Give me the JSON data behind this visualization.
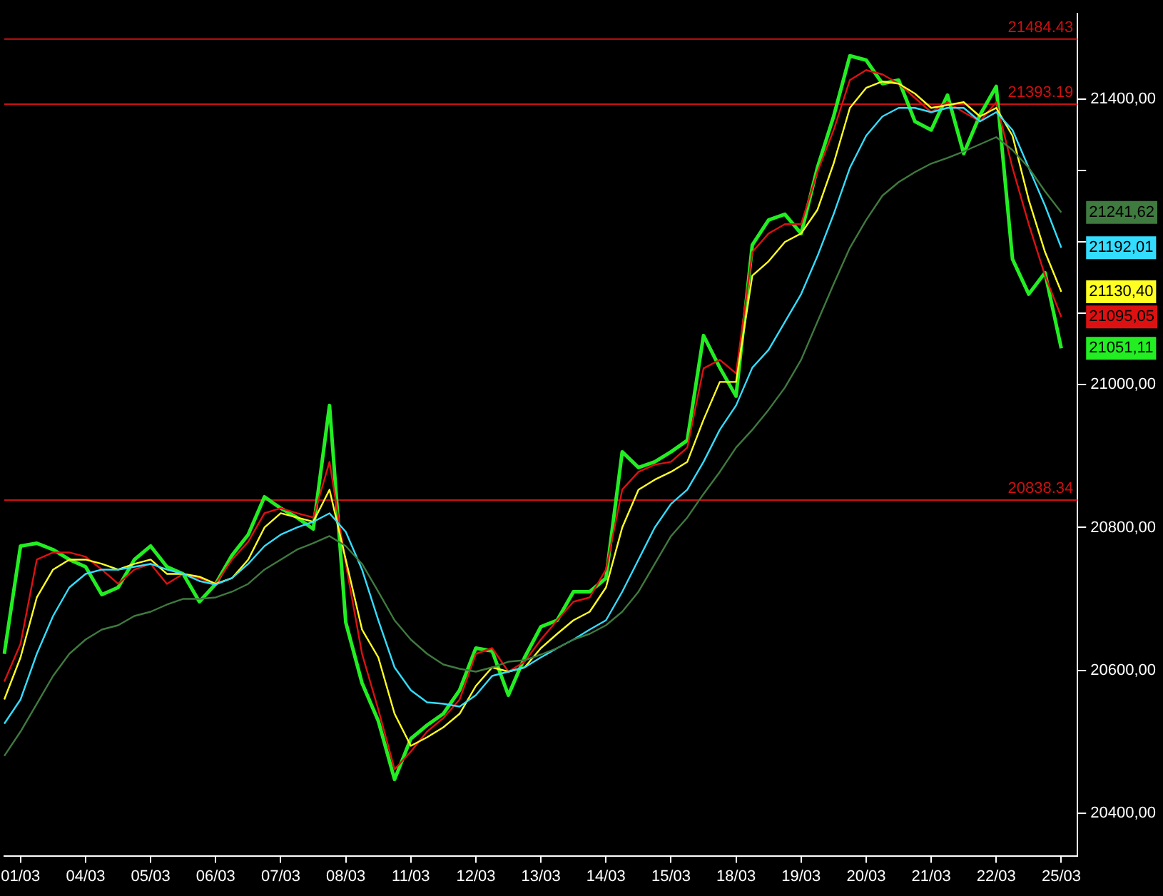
{
  "chart_data": {
    "type": "line",
    "categories": [
      null,
      "01/03",
      null,
      null,
      null,
      "04/03",
      null,
      null,
      null,
      "05/03",
      null,
      null,
      null,
      "06/03",
      null,
      null,
      null,
      "07/03",
      null,
      null,
      null,
      "08/03",
      null,
      null,
      null,
      "11/03",
      null,
      null,
      null,
      "12/03",
      null,
      null,
      null,
      "13/03",
      null,
      null,
      null,
      "14/03",
      null,
      null,
      null,
      "15/03",
      null,
      null,
      null,
      "18/03",
      null,
      null,
      null,
      "19/03",
      null,
      null,
      null,
      "20/03",
      null,
      null,
      null,
      "21/03",
      null,
      null,
      null,
      "22/03",
      null,
      null,
      null,
      "25/03",
      null
    ],
    "series": [
      {
        "color": "#22ee22",
        "values": [
          20623,
          20774,
          20778,
          20769,
          20755,
          20745,
          20706,
          20716,
          20755,
          20774,
          20745,
          20735,
          20696,
          20721,
          20761,
          20790,
          20843,
          20827,
          20814,
          20798,
          20971,
          20667,
          20582,
          20529,
          20447,
          20504,
          20523,
          20539,
          20572,
          20631,
          20627,
          20565,
          20618,
          20661,
          20670,
          20710,
          20710,
          20729,
          20906,
          20884,
          20892,
          20906,
          20922,
          21069,
          21024,
          20984,
          21196,
          21231,
          21239,
          21212,
          21304,
          21376,
          21461,
          21455,
          21422,
          21427,
          21369,
          21357,
          21406,
          21324,
          21378,
          21418,
          21176,
          21127,
          21157,
          21051.11,
          null
        ],
        "value_labels": [
          null,
          null,
          null,
          null,
          null,
          null,
          null,
          null,
          null,
          null,
          null,
          null,
          null,
          null,
          null,
          null,
          null,
          null,
          null,
          null,
          null,
          null,
          null,
          null,
          null,
          null,
          null,
          null,
          null,
          null,
          null,
          null,
          null,
          null,
          null,
          null,
          null,
          null,
          null,
          null,
          null,
          null,
          null,
          null,
          null,
          null,
          null,
          null,
          null,
          null,
          null,
          null,
          null,
          null,
          null,
          null,
          null,
          null,
          null,
          null,
          null,
          null,
          null,
          null,
          null,
          "21051,11",
          null
        ]
      },
      {
        "color": "#dd1111",
        "values": [
          20584,
          20637,
          20755,
          20765,
          20765,
          20759,
          20741,
          20721,
          20741,
          20749,
          20721,
          20735,
          20729,
          20721,
          20755,
          20780,
          20820,
          20827,
          20820,
          20814,
          20892,
          20749,
          20623,
          20545,
          20461,
          20486,
          20514,
          20533,
          20559,
          20623,
          20631,
          20598,
          20612,
          20643,
          20670,
          20696,
          20702,
          20741,
          20853,
          20878,
          20888,
          20892,
          20912,
          21023,
          21035,
          21016,
          21186,
          21212,
          21225,
          21225,
          21298,
          21357,
          21427,
          21441,
          21435,
          21422,
          21402,
          21382,
          21396,
          21382,
          21369,
          21396,
          21304,
          21225,
          21153,
          21095.05,
          null
        ],
        "value_labels": [
          null,
          null,
          null,
          null,
          null,
          null,
          null,
          null,
          null,
          null,
          null,
          null,
          null,
          null,
          null,
          null,
          null,
          null,
          null,
          null,
          null,
          null,
          null,
          null,
          null,
          null,
          null,
          null,
          null,
          null,
          null,
          null,
          null,
          null,
          null,
          null,
          null,
          null,
          null,
          null,
          null,
          null,
          null,
          null,
          null,
          null,
          null,
          null,
          null,
          null,
          null,
          null,
          null,
          null,
          null,
          null,
          null,
          null,
          null,
          null,
          null,
          null,
          null,
          null,
          null,
          "21095,05",
          null
        ]
      },
      {
        "color": "#ffff22",
        "values": [
          20559,
          20618,
          20702,
          20741,
          20755,
          20755,
          20749,
          20741,
          20749,
          20755,
          20735,
          20735,
          20731,
          20721,
          20729,
          20755,
          20800,
          20820,
          20814,
          20808,
          20853,
          20755,
          20657,
          20618,
          20539,
          20494,
          20506,
          20520,
          20539,
          20578,
          20604,
          20598,
          20604,
          20631,
          20651,
          20670,
          20682,
          20716,
          20800,
          20853,
          20867,
          20878,
          20892,
          20951,
          21004,
          21004,
          21153,
          21173,
          21200,
          21212,
          21245,
          21310,
          21388,
          21416,
          21425,
          21422,
          21408,
          21388,
          21392,
          21396,
          21376,
          21388,
          21349,
          21259,
          21186,
          21130.4,
          null
        ],
        "value_labels": [
          null,
          null,
          null,
          null,
          null,
          null,
          null,
          null,
          null,
          null,
          null,
          null,
          null,
          null,
          null,
          null,
          null,
          null,
          null,
          null,
          null,
          null,
          null,
          null,
          null,
          null,
          null,
          null,
          null,
          null,
          null,
          null,
          null,
          null,
          null,
          null,
          null,
          null,
          null,
          null,
          null,
          null,
          null,
          null,
          null,
          null,
          null,
          null,
          null,
          null,
          null,
          null,
          null,
          null,
          null,
          null,
          null,
          null,
          null,
          null,
          null,
          null,
          null,
          null,
          null,
          "21130,40",
          null
        ]
      },
      {
        "color": "#33ddff",
        "values": [
          20525,
          20559,
          20623,
          20676,
          20716,
          20735,
          20741,
          20741,
          20745,
          20749,
          20741,
          20735,
          20725,
          20720,
          20729,
          20749,
          20774,
          20790,
          20800,
          20808,
          20820,
          20794,
          20741,
          20670,
          20604,
          20572,
          20555,
          20553,
          20549,
          20565,
          20592,
          20598,
          20604,
          20618,
          20631,
          20643,
          20657,
          20670,
          20710,
          20755,
          20800,
          20833,
          20853,
          20892,
          20937,
          20971,
          21024,
          21049,
          21088,
          21127,
          21180,
          21239,
          21304,
          21349,
          21376,
          21388,
          21388,
          21382,
          21388,
          21388,
          21369,
          21382,
          21357,
          21304,
          21251,
          21192.01,
          null
        ],
        "value_labels": [
          null,
          null,
          null,
          null,
          null,
          null,
          null,
          null,
          null,
          null,
          null,
          null,
          null,
          null,
          null,
          null,
          null,
          null,
          null,
          null,
          null,
          null,
          null,
          null,
          null,
          null,
          null,
          null,
          null,
          null,
          null,
          null,
          null,
          null,
          null,
          null,
          null,
          null,
          null,
          null,
          null,
          null,
          null,
          null,
          null,
          null,
          null,
          null,
          null,
          null,
          null,
          null,
          null,
          null,
          null,
          null,
          null,
          null,
          null,
          null,
          null,
          null,
          null,
          null,
          null,
          "21192,01",
          null
        ]
      },
      {
        "color": "#3f7a3f",
        "values": [
          20480,
          20514,
          20553,
          20592,
          20623,
          20643,
          20657,
          20663,
          20676,
          20682,
          20692,
          20700,
          20700,
          20702,
          20710,
          20721,
          20741,
          20755,
          20769,
          20778,
          20788,
          20774,
          20749,
          20710,
          20670,
          20643,
          20623,
          20608,
          20602,
          20598,
          20604,
          20612,
          20614,
          20622,
          20631,
          20643,
          20651,
          20663,
          20682,
          20710,
          20749,
          20788,
          20814,
          20847,
          20878,
          20912,
          20937,
          20965,
          20996,
          21035,
          21088,
          21141,
          21192,
          21231,
          21265,
          21284,
          21298,
          21310,
          21318,
          21327,
          21337,
          21347,
          21329,
          21304,
          21271,
          21241.62,
          null
        ],
        "value_labels": [
          null,
          null,
          null,
          null,
          null,
          null,
          null,
          null,
          null,
          null,
          null,
          null,
          null,
          null,
          null,
          null,
          null,
          null,
          null,
          null,
          null,
          null,
          null,
          null,
          null,
          null,
          null,
          null,
          null,
          null,
          null,
          null,
          null,
          null,
          null,
          null,
          null,
          null,
          null,
          null,
          null,
          null,
          null,
          null,
          null,
          null,
          null,
          null,
          null,
          null,
          null,
          null,
          null,
          null,
          null,
          null,
          null,
          null,
          null,
          null,
          null,
          null,
          null,
          null,
          null,
          "21241,62",
          null
        ]
      }
    ],
    "ylim": [
      20340,
      21520
    ],
    "yticks": [
      {
        "value": 20400,
        "label": "20400,00"
      },
      {
        "value": 20600,
        "label": "20600,00"
      },
      {
        "value": 20800,
        "label": "20800,00"
      },
      {
        "value": 21000,
        "label": "21000,00"
      },
      {
        "value": 21100,
        "label": null
      },
      {
        "value": 21200,
        "label": null
      },
      {
        "value": 21300,
        "label": null
      },
      {
        "value": 21400,
        "label": "21400,00"
      }
    ],
    "ref_lines": [
      {
        "axis": "y",
        "value": 21484.43,
        "label": "21484.43",
        "color": "#cc1111"
      },
      {
        "axis": "y",
        "value": 21393.19,
        "label": "21393.19",
        "color": "#cc1111"
      },
      {
        "axis": "y",
        "value": 20838.34,
        "label": "20838.34",
        "color": "#cc1111"
      }
    ],
    "grid": false,
    "legend": false,
    "marker": "none",
    "line_style": "solid"
  }
}
